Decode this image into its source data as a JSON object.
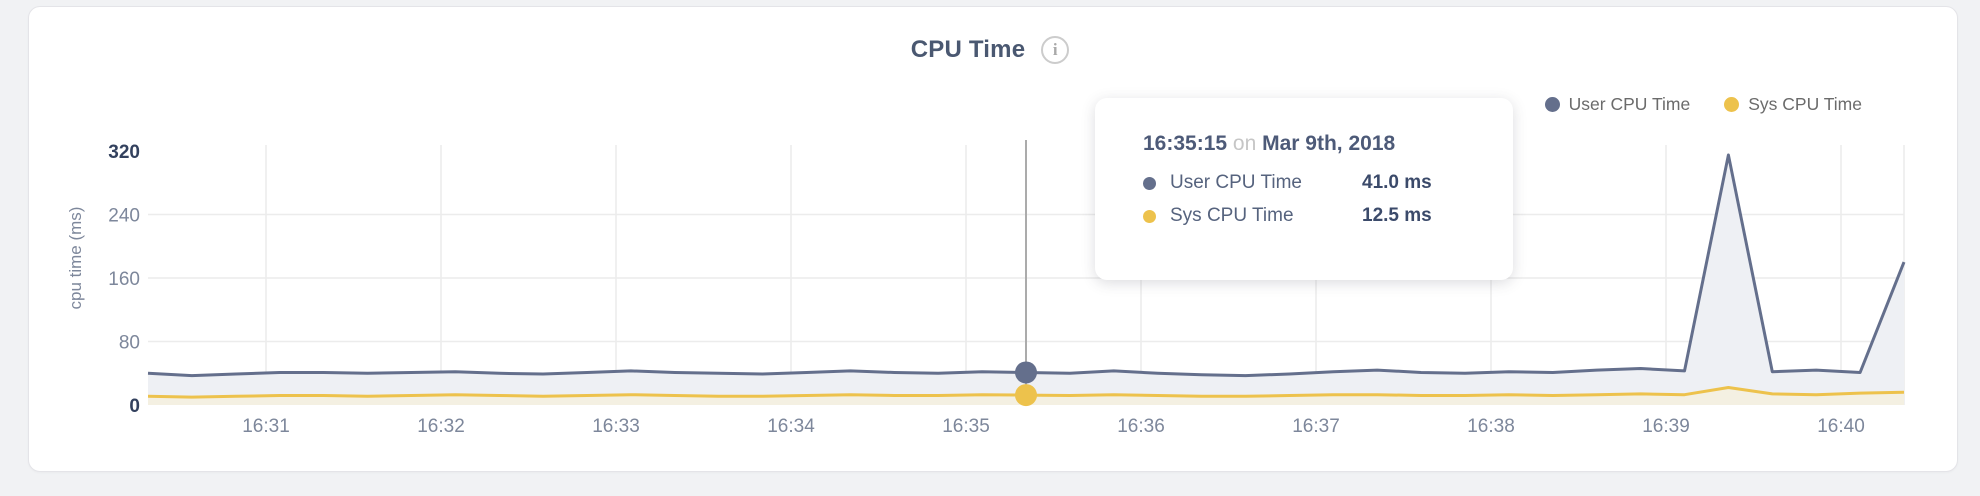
{
  "header": {
    "title": "CPU Time",
    "info_icon": "i"
  },
  "legend": {
    "items": [
      {
        "label": "User CPU Time",
        "color": "#646f8c"
      },
      {
        "label": "Sys CPU Time",
        "color": "#edc24c"
      }
    ]
  },
  "tooltip": {
    "time": "16:35:15",
    "connector": "on",
    "date": "Mar 9th, 2018",
    "rows": [
      {
        "label": "User CPU Time",
        "value": "41.0 ms",
        "color": "#646f8c"
      },
      {
        "label": "Sys CPU Time",
        "value": "12.5 ms",
        "color": "#edc24c"
      }
    ]
  },
  "chart_data": {
    "type": "area",
    "title": "CPU Time",
    "xlabel": "",
    "ylabel": "cpu time (ms)",
    "ylim": [
      0,
      320
    ],
    "y_ticks": [
      0,
      80,
      160,
      240,
      320
    ],
    "x_ticks": [
      "16:31",
      "16:32",
      "16:33",
      "16:34",
      "16:35",
      "16:36",
      "16:37",
      "16:38",
      "16:39",
      "16:40"
    ],
    "grid": true,
    "legend_position": "top-right",
    "sample_interval_seconds": 15,
    "series": [
      {
        "name": "User CPU Time",
        "color": "#646f8c",
        "fill": "#eef0f4",
        "values": [
          40,
          37,
          39,
          41,
          41,
          40,
          41,
          42,
          40,
          39,
          41,
          43,
          41,
          40,
          39,
          41,
          43,
          41,
          40,
          42,
          41,
          40,
          43,
          40,
          38,
          37,
          39,
          42,
          44,
          41,
          40,
          42,
          41,
          44,
          46,
          43,
          315,
          42,
          44,
          41,
          180
        ]
      },
      {
        "name": "Sys CPU Time",
        "color": "#edc24c",
        "fill": "#f4f0e2",
        "values": [
          11,
          10,
          11,
          12,
          12,
          11,
          12,
          13,
          12,
          11,
          12,
          13,
          12,
          11,
          11,
          12,
          13,
          12,
          12,
          13,
          12.5,
          12,
          13,
          12,
          11,
          11,
          12,
          13,
          13,
          12,
          12,
          13,
          12,
          13,
          14,
          13,
          22,
          14,
          13,
          15,
          16
        ]
      }
    ],
    "highlight": {
      "index": 20,
      "time": "16:35:15",
      "date": "Mar 9th, 2018",
      "values_ms": [
        41.0,
        12.5
      ]
    },
    "colors": {
      "grid": "#ececec",
      "crosshair": "#ababab",
      "axis_label": "#7d879b",
      "axis_label_endpoint": "#33415e",
      "x_label": "#7d879b"
    }
  }
}
